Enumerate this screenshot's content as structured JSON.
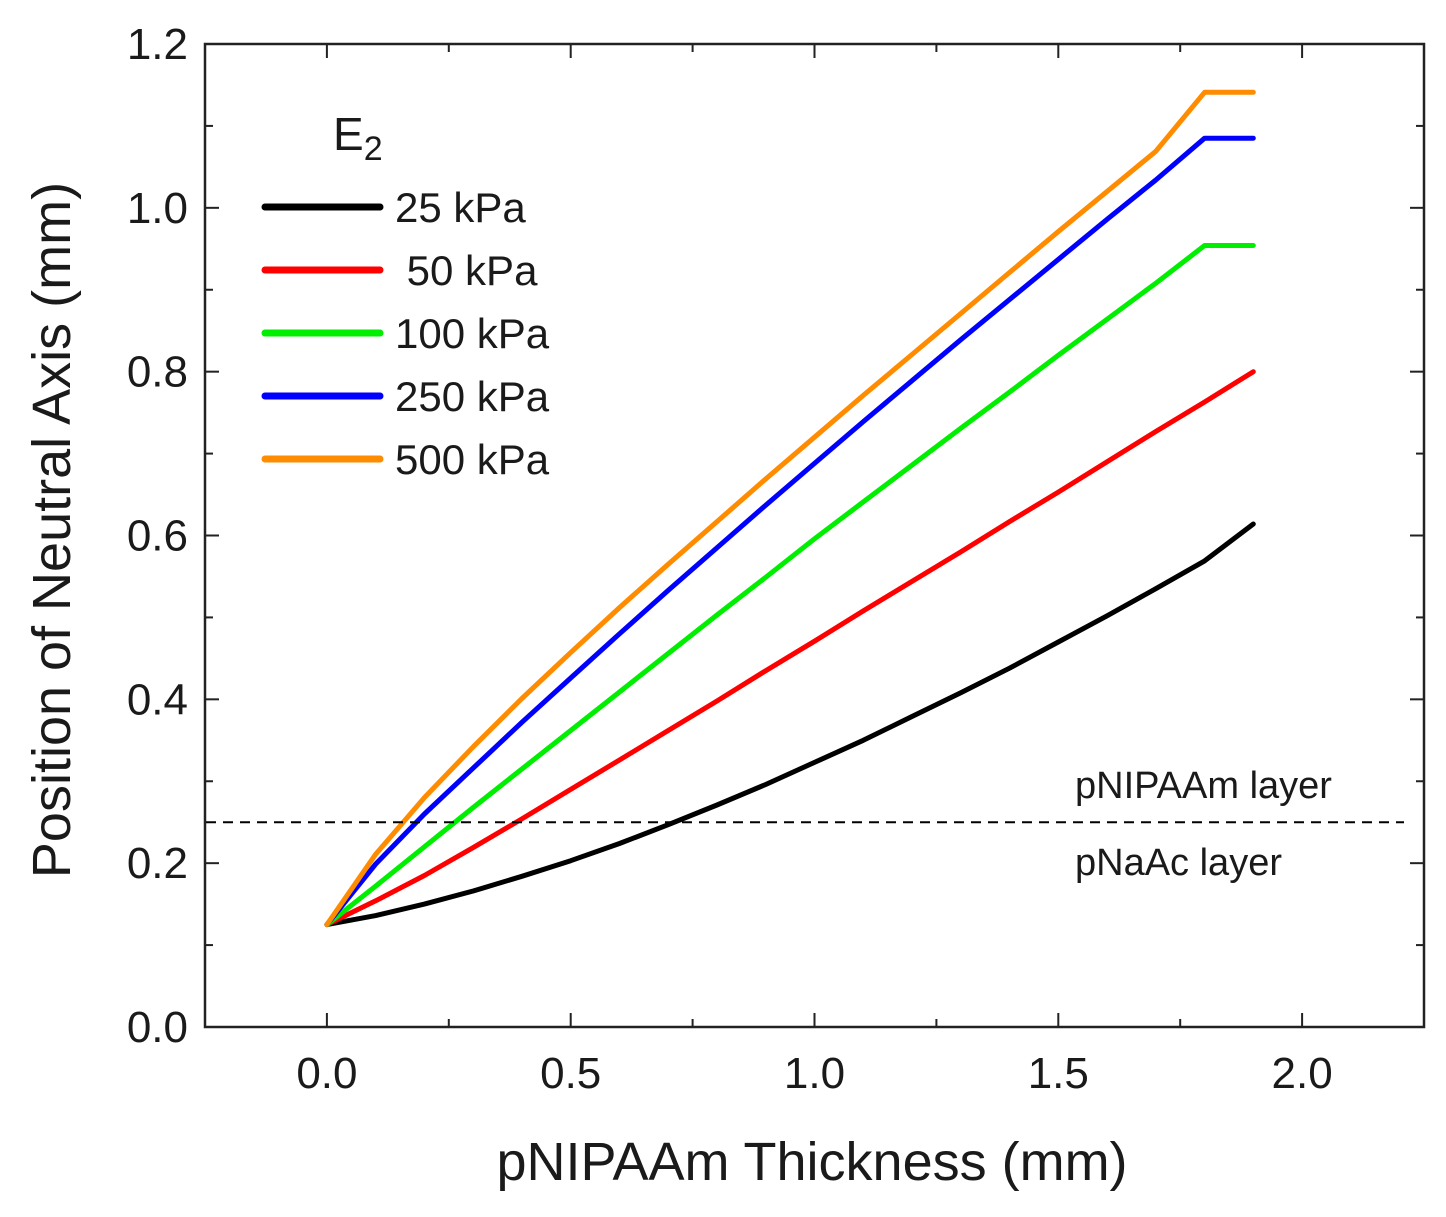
{
  "chart_data": {
    "type": "line",
    "xlabel": "pNIPAAm Thickness (mm)",
    "ylabel": "Position of Neutral Axis (mm)",
    "xlim": [
      -0.25,
      2.25
    ],
    "ylim": [
      0.0,
      1.2
    ],
    "xticks": [
      0.0,
      0.5,
      1.0,
      1.5,
      2.0
    ],
    "xtick_labels": [
      "0.0",
      "0.5",
      "1.0",
      "1.5",
      "2.0"
    ],
    "yticks": [
      0.0,
      0.2,
      0.4,
      0.6,
      0.8,
      1.0,
      1.2
    ],
    "ytick_labels": [
      "0.0",
      "0.2",
      "0.4",
      "0.6",
      "0.8",
      "1.0",
      "1.2"
    ],
    "grid": false,
    "legend": {
      "title_main": "E",
      "title_sub": "2",
      "placement": "top-left"
    },
    "x": [
      0.0,
      0.1,
      0.2,
      0.3,
      0.4,
      0.5,
      0.6,
      0.7,
      0.8,
      0.9,
      1.0,
      1.1,
      1.2,
      1.3,
      1.4,
      1.5,
      1.6,
      1.7,
      1.8,
      1.9
    ],
    "series": [
      {
        "name": "25 kPa",
        "color": "#000000",
        "values": [
          0.125,
          0.136,
          0.15,
          0.166,
          0.184,
          0.203,
          0.224,
          0.247,
          0.271,
          0.296,
          0.323,
          0.35,
          0.379,
          0.408,
          0.438,
          0.47,
          0.502,
          0.535,
          0.569,
          0.614
        ]
      },
      {
        "name": " 50 kPa",
        "color": "#ff0000",
        "values": [
          0.125,
          0.154,
          0.185,
          0.219,
          0.254,
          0.29,
          0.326,
          0.362,
          0.398,
          0.435,
          0.471,
          0.508,
          0.544,
          0.58,
          0.617,
          0.653,
          0.69,
          0.727,
          0.763,
          0.8
        ]
      },
      {
        "name": "100 kPa",
        "color": "#00ee00",
        "values": [
          0.125,
          0.172,
          0.22,
          0.268,
          0.315,
          0.362,
          0.409,
          0.456,
          0.503,
          0.549,
          0.596,
          0.641,
          0.686,
          0.731,
          0.775,
          0.82,
          0.864,
          0.908,
          0.954,
          0.954
        ]
      },
      {
        "name": "250 kPa",
        "color": "#0000ff",
        "values": [
          0.125,
          0.199,
          0.26,
          0.316,
          0.372,
          0.426,
          0.48,
          0.533,
          0.585,
          0.637,
          0.688,
          0.739,
          0.789,
          0.839,
          0.888,
          0.937,
          0.986,
          1.034,
          1.085,
          1.085
        ]
      },
      {
        "name": "500 kPa",
        "color": "#ff8c00",
        "values": [
          0.125,
          0.211,
          0.28,
          0.342,
          0.401,
          0.457,
          0.512,
          0.565,
          0.617,
          0.669,
          0.72,
          0.771,
          0.821,
          0.871,
          0.921,
          0.971,
          1.02,
          1.069,
          1.141,
          1.141
        ]
      }
    ],
    "reference_line": {
      "y": 0.25,
      "style": "dashed"
    },
    "annotations": {
      "above": "pNIPAAm layer",
      "below": "pNaAc layer"
    }
  }
}
